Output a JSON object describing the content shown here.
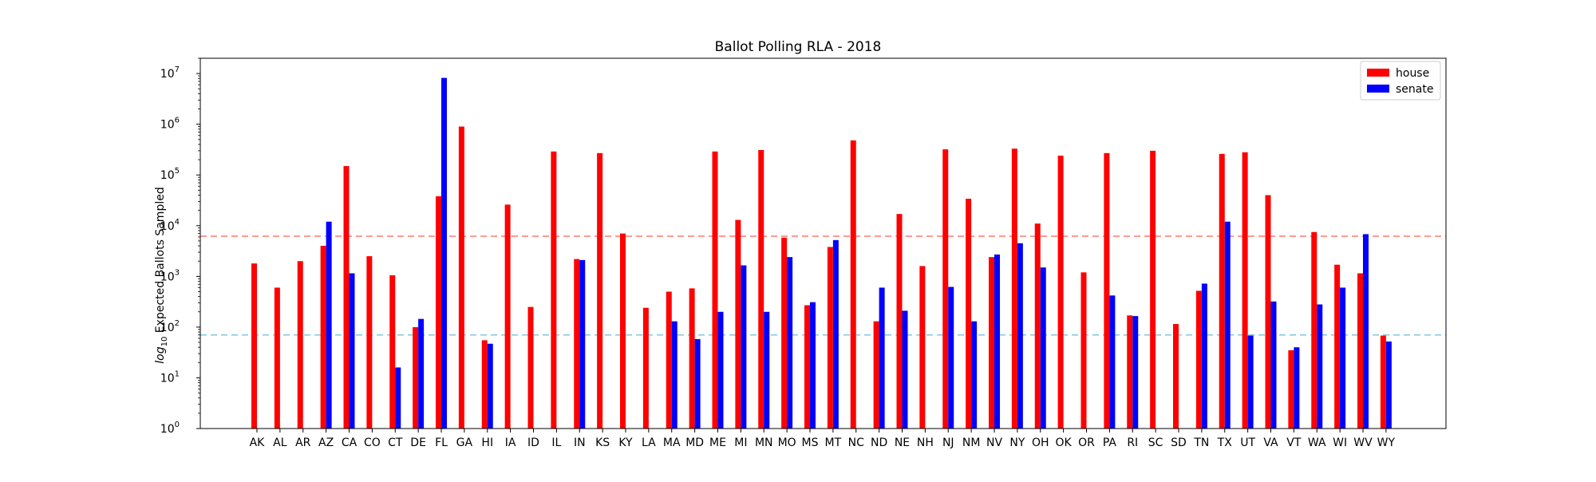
{
  "chart_data": {
    "type": "bar",
    "title": "Ballot Polling RLA - 2018",
    "xlabel": "",
    "ylabel": "log10 Expected Ballots Sampled",
    "ylabel_parts": {
      "prefix": "log",
      "subscript": "10",
      "suffix": " Expected Ballots Sampled"
    },
    "yscale": "log",
    "ylim": [
      1,
      20000000
    ],
    "yticks": [
      {
        "value": 1,
        "base": "10",
        "exp": "0"
      },
      {
        "value": 10,
        "base": "10",
        "exp": "1"
      },
      {
        "value": 100,
        "base": "10",
        "exp": "2"
      },
      {
        "value": 1000,
        "base": "10",
        "exp": "3"
      },
      {
        "value": 10000,
        "base": "10",
        "exp": "4"
      },
      {
        "value": 100000,
        "base": "10",
        "exp": "5"
      },
      {
        "value": 1000000,
        "base": "10",
        "exp": "6"
      },
      {
        "value": 10000000,
        "base": "10",
        "exp": "7"
      }
    ],
    "grid": false,
    "legend_position": "top-right",
    "categories": [
      "AK",
      "AL",
      "AR",
      "AZ",
      "CA",
      "CO",
      "CT",
      "DE",
      "FL",
      "GA",
      "HI",
      "IA",
      "ID",
      "IL",
      "IN",
      "KS",
      "KY",
      "LA",
      "MA",
      "MD",
      "ME",
      "MI",
      "MN",
      "MO",
      "MS",
      "MT",
      "NC",
      "ND",
      "NE",
      "NH",
      "NJ",
      "NM",
      "NV",
      "NY",
      "OH",
      "OK",
      "OR",
      "PA",
      "RI",
      "SC",
      "SD",
      "TN",
      "TX",
      "UT",
      "VA",
      "VT",
      "WA",
      "WI",
      "WV",
      "WY"
    ],
    "series": [
      {
        "name": "house",
        "color": "#ff0000",
        "values": [
          1800,
          600,
          2000,
          4000,
          150000,
          2500,
          1050,
          100,
          38000,
          900000,
          55,
          26000,
          250,
          290000,
          2200,
          270000,
          7000,
          240,
          500,
          580,
          290000,
          13000,
          310000,
          5800,
          270,
          3800,
          480000,
          130,
          17000,
          1600,
          320000,
          34000,
          2400,
          330000,
          11000,
          240000,
          1200,
          270000,
          170,
          300000,
          115,
          520,
          260000,
          280000,
          40000,
          35,
          7500,
          1700,
          1150,
          68
        ]
      },
      {
        "name": "senate",
        "color": "#0000ff",
        "values": [
          null,
          null,
          null,
          12000,
          1150,
          null,
          16,
          145,
          8200000,
          null,
          47,
          null,
          null,
          null,
          2100,
          null,
          null,
          null,
          130,
          58,
          200,
          1650,
          200,
          2400,
          310,
          5200,
          null,
          600,
          210,
          null,
          620,
          130,
          2700,
          4500,
          1500,
          null,
          null,
          420,
          165,
          null,
          null,
          720,
          12000,
          68,
          320,
          40,
          280,
          600,
          6800,
          52
        ]
      }
    ],
    "reference_lines": [
      {
        "value": 6200,
        "color": "#ff7a6b",
        "style": "dashed"
      },
      {
        "value": 70,
        "color": "#7ec8e3",
        "style": "dashed"
      }
    ]
  }
}
